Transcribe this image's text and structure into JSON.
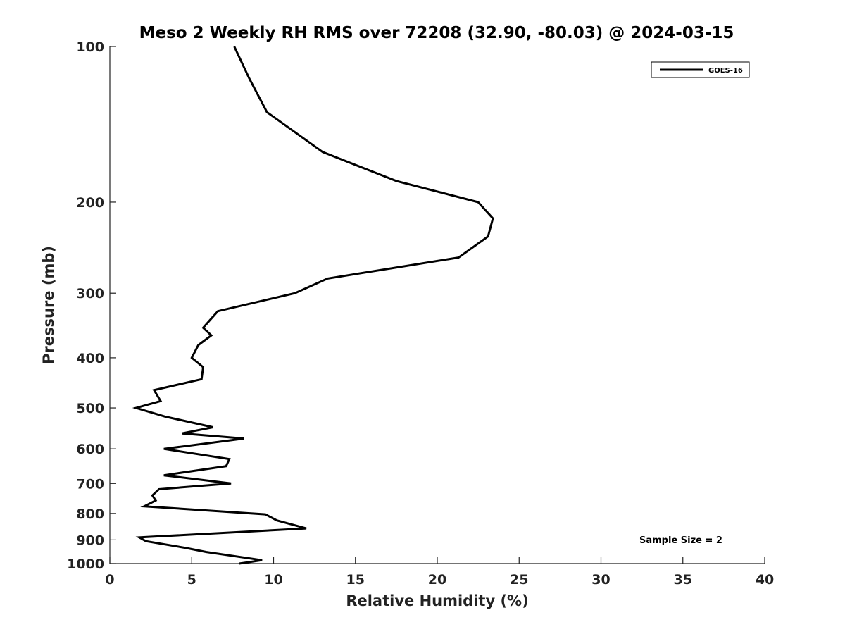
{
  "chart_data": {
    "type": "line",
    "title": "Meso 2 Weekly RH RMS over 72208 (32.90, -80.03) @ 2024-03-15",
    "xlabel": "Relative Humidity (%)",
    "ylabel": "Pressure (mb)",
    "xlim": [
      0,
      40
    ],
    "ylim": [
      1000,
      100
    ],
    "y_scale": "log",
    "x_ticks": [
      "0",
      "5",
      "10",
      "15",
      "20",
      "25",
      "30",
      "35",
      "40"
    ],
    "y_ticks": [
      "100",
      "200",
      "300",
      "400",
      "500",
      "600",
      "700",
      "800",
      "900",
      "1000"
    ],
    "grid": false,
    "legend_position": "top-right",
    "annotation": "Sample Size = 2",
    "series": [
      {
        "name": "GOES-16",
        "color": "#000000",
        "points": [
          [
            7.6,
            100
          ],
          [
            8.5,
            115
          ],
          [
            9.6,
            134
          ],
          [
            13.0,
            160
          ],
          [
            17.5,
            182
          ],
          [
            22.5,
            200
          ],
          [
            23.4,
            215
          ],
          [
            23.1,
            233
          ],
          [
            21.3,
            256
          ],
          [
            13.3,
            281
          ],
          [
            11.3,
            300
          ],
          [
            6.6,
            325
          ],
          [
            5.7,
            350
          ],
          [
            6.2,
            362
          ],
          [
            5.4,
            378
          ],
          [
            5.0,
            400
          ],
          [
            5.7,
            417
          ],
          [
            5.6,
            440
          ],
          [
            2.7,
            462
          ],
          [
            3.1,
            485
          ],
          [
            1.6,
            500
          ],
          [
            3.4,
            520
          ],
          [
            6.3,
            545
          ],
          [
            4.4,
            560
          ],
          [
            8.2,
            573
          ],
          [
            3.3,
            600
          ],
          [
            7.3,
            628
          ],
          [
            7.1,
            648
          ],
          [
            3.3,
            675
          ],
          [
            7.4,
            700
          ],
          [
            3.0,
            718
          ],
          [
            2.6,
            738
          ],
          [
            2.8,
            755
          ],
          [
            2.1,
            775
          ],
          [
            9.5,
            803
          ],
          [
            10.2,
            825
          ],
          [
            12.0,
            855
          ],
          [
            1.8,
            890
          ],
          [
            2.2,
            905
          ],
          [
            4.6,
            932
          ],
          [
            5.9,
            950
          ],
          [
            9.3,
            985
          ],
          [
            7.9,
            1000
          ]
        ]
      }
    ]
  }
}
